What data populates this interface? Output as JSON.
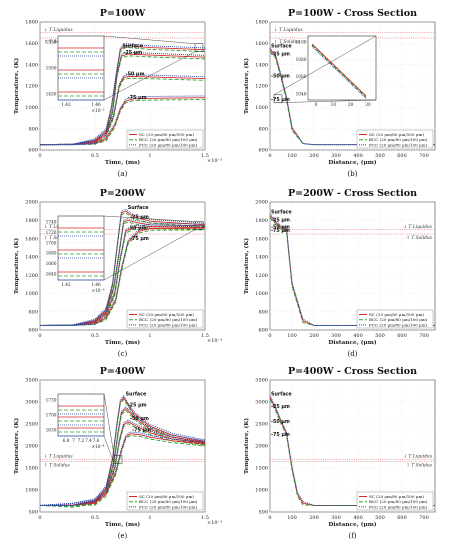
{
  "legend": [
    {
      "name": "SC (20 μm/80 μm/100 μm)",
      "color": "#d62728",
      "dash": "none"
    },
    {
      "name": "BCC (20 μm/80 μm/100 μm)",
      "color": "#2ca02c",
      "dash": "4,2"
    },
    {
      "name": "FCC (20 μm/80 μm/100 μm)",
      "color": "#1f3f9f",
      "dash": "1,1"
    }
  ],
  "ref_labels": {
    "liquidus": "↓ T Liquidus",
    "solidus": "↑ T Solidus"
  },
  "chart_data": [
    {
      "id": "a",
      "type": "line",
      "title": "P=100W",
      "sublabel": "(a)",
      "xlabel": "Time, (ms)",
      "ylabel": "Temperature, (K)",
      "xlim": [
        0,
        1.5
      ],
      "ylim": [
        600,
        1800
      ],
      "xticks": [
        "0",
        "0.5",
        "1",
        "1.5"
      ],
      "yticks": [
        "600",
        "800",
        "1000",
        "1200",
        "1400",
        "1600",
        "1800"
      ],
      "x_multiplier": "×10⁻³",
      "ref_lines": {
        "liquidus": 1700,
        "solidus": 1650
      },
      "annotations": [
        "Surface",
        "-25 μm",
        "-50 μm",
        "-75 μm"
      ],
      "curves": [
        {
          "label": "Surface",
          "x": [
            0,
            0.3,
            0.5,
            0.6,
            0.65,
            0.7,
            0.73,
            0.78,
            1.0,
            1.5
          ],
          "y": [
            650,
            655,
            690,
            780,
            1000,
            1350,
            1540,
            1580,
            1560,
            1540
          ]
        },
        {
          "label": "-25 μm",
          "x": [
            0,
            0.3,
            0.5,
            0.6,
            0.66,
            0.7,
            0.74,
            0.8,
            1.0,
            1.5
          ],
          "y": [
            650,
            652,
            680,
            760,
            960,
            1300,
            1480,
            1500,
            1490,
            1470
          ]
        },
        {
          "label": "-50 μm",
          "x": [
            0,
            0.3,
            0.5,
            0.6,
            0.67,
            0.72,
            0.76,
            0.82,
            1.0,
            1.5
          ],
          "y": [
            650,
            651,
            670,
            740,
            920,
            1200,
            1280,
            1290,
            1285,
            1270
          ]
        },
        {
          "label": "-75 μm",
          "x": [
            0,
            0.3,
            0.5,
            0.6,
            0.68,
            0.73,
            0.78,
            0.85,
            1.0,
            1.5
          ],
          "y": [
            650,
            650,
            660,
            700,
            830,
            980,
            1060,
            1080,
            1085,
            1090
          ]
        }
      ],
      "inset": {
        "yticks": [
          "1550",
          "1500",
          "1450"
        ],
        "xticks": [
          "1.42",
          "1.46"
        ],
        "multiplier": "×10⁻³"
      }
    },
    {
      "id": "b",
      "type": "line",
      "title": "P=100W - Cross Section",
      "sublabel": "(b)",
      "xlabel": "Distance, (μm)",
      "ylabel": "Temperature, (K)",
      "xlim": [
        0,
        750
      ],
      "ylim": [
        600,
        1800
      ],
      "xticks": [
        "0",
        "100",
        "200",
        "300",
        "400",
        "500",
        "600",
        "700"
      ],
      "yticks": [
        "600",
        "800",
        "1000",
        "1200",
        "1400",
        "1600",
        "1800"
      ],
      "ref_lines": {
        "liquidus": 1700,
        "solidus": 1650
      },
      "annotations": [
        "Surface",
        "-25 μm",
        "-50 μm",
        "-75 μm"
      ],
      "curves": [
        {
          "label": "profile",
          "x": [
            0,
            25,
            50,
            75,
            100,
            150,
            200,
            300,
            750
          ],
          "y": [
            1540,
            1480,
            1290,
            1085,
            800,
            660,
            650,
            650,
            650
          ]
        }
      ],
      "inset": {
        "yticks": [
          "1100",
          "1080",
          "1060",
          "1040"
        ],
        "xticks": [
          "0",
          "10",
          "20",
          "30"
        ]
      }
    },
    {
      "id": "c",
      "type": "line",
      "title": "P=200W",
      "sublabel": "(c)",
      "xlabel": "Time, (ms)",
      "ylabel": "Temperature, (K)",
      "xlim": [
        0,
        1.5
      ],
      "ylim": [
        600,
        2000
      ],
      "xticks": [
        "0",
        "0.5",
        "1",
        "1.5"
      ],
      "yticks": [
        "600",
        "800",
        "1000",
        "1200",
        "1400",
        "1600",
        "1800",
        "2000"
      ],
      "x_multiplier": "×10⁻³",
      "ref_lines": {
        "liquidus": 1700,
        "solidus": 1650
      },
      "annotations": [
        "Surface",
        "-25 μm",
        "-50 μm",
        "-75 μm"
      ],
      "curves": [
        {
          "label": "Surface",
          "x": [
            0,
            0.3,
            0.5,
            0.6,
            0.66,
            0.7,
            0.74,
            0.78,
            0.85,
            1.0,
            1.5
          ],
          "y": [
            650,
            655,
            700,
            820,
            1100,
            1500,
            1880,
            1900,
            1840,
            1790,
            1750
          ]
        },
        {
          "label": "-25 μm",
          "x": [
            0,
            0.3,
            0.5,
            0.6,
            0.67,
            0.72,
            0.76,
            0.8,
            0.9,
            1.0,
            1.5
          ],
          "y": [
            650,
            652,
            690,
            800,
            1060,
            1450,
            1780,
            1800,
            1770,
            1750,
            1740
          ]
        },
        {
          "label": "-50 μm",
          "x": [
            0,
            0.3,
            0.5,
            0.6,
            0.68,
            0.73,
            0.78,
            0.85,
            1.0,
            1.5
          ],
          "y": [
            650,
            651,
            680,
            770,
            1000,
            1380,
            1680,
            1720,
            1730,
            1720
          ]
        },
        {
          "label": "-75 μm",
          "x": [
            0,
            0.3,
            0.5,
            0.6,
            0.69,
            0.74,
            0.8,
            0.9,
            1.0,
            1.5
          ],
          "y": [
            650,
            650,
            665,
            730,
            930,
            1260,
            1560,
            1680,
            1710,
            1715
          ]
        }
      ],
      "inset": {
        "yticks": [
          "1740",
          "1720",
          "1700",
          "1680",
          "1660",
          "1640"
        ],
        "xticks": [
          "1.42",
          "1.46"
        ],
        "multiplier": "×10⁻³"
      }
    },
    {
      "id": "d",
      "type": "line",
      "title": "P=200W - Cross Section",
      "sublabel": "(d)",
      "xlabel": "Distance, (μm)",
      "ylabel": "Temperature, (K)",
      "xlim": [
        0,
        750
      ],
      "ylim": [
        600,
        2000
      ],
      "xticks": [
        "0",
        "100",
        "200",
        "300",
        "400",
        "500",
        "600",
        "700"
      ],
      "yticks": [
        "600",
        "800",
        "1000",
        "1200",
        "1400",
        "1600",
        "1800",
        "2000"
      ],
      "ref_lines": {
        "liquidus": 1700,
        "solidus": 1650
      },
      "annotations": [
        "Surface",
        "-25 μm",
        "-50 μm",
        "-75 μm"
      ],
      "curves": [
        {
          "label": "profile",
          "x": [
            0,
            25,
            50,
            75,
            100,
            150,
            200,
            300,
            750
          ],
          "y": [
            1850,
            1780,
            1720,
            1700,
            1100,
            700,
            650,
            650,
            650
          ]
        }
      ]
    },
    {
      "id": "e",
      "type": "line",
      "title": "P=400W",
      "sublabel": "(e)",
      "xlabel": "Time, (ms)",
      "ylabel": "Temperature, (K)",
      "xlim": [
        0,
        1.5
      ],
      "ylim": [
        500,
        3500
      ],
      "xticks": [
        "0",
        "0.5",
        "1",
        "1.5"
      ],
      "yticks": [
        "500",
        "1000",
        "1500",
        "2000",
        "2500",
        "3000",
        "3500"
      ],
      "x_multiplier": "×10⁻³",
      "ref_lines": {
        "liquidus": 1700,
        "solidus": 1650
      },
      "annotations": [
        "Surface",
        "-25 μm",
        "-50 μm",
        "-75 μm"
      ],
      "curves": [
        {
          "label": "Surface",
          "x": [
            0,
            0.3,
            0.5,
            0.6,
            0.66,
            0.7,
            0.73,
            0.76,
            0.85,
            1.0,
            1.2,
            1.5
          ],
          "y": [
            650,
            660,
            760,
            1050,
            1700,
            2500,
            3000,
            3100,
            2750,
            2450,
            2250,
            2100
          ]
        },
        {
          "label": "-25 μm",
          "x": [
            0,
            0.3,
            0.5,
            0.6,
            0.67,
            0.71,
            0.74,
            0.78,
            0.88,
            1.0,
            1.2,
            1.5
          ],
          "y": [
            650,
            655,
            740,
            1000,
            1600,
            2300,
            2750,
            2850,
            2600,
            2380,
            2200,
            2080
          ]
        },
        {
          "label": "-50 μm",
          "x": [
            0,
            0.3,
            0.5,
            0.6,
            0.68,
            0.72,
            0.76,
            0.8,
            0.9,
            1.0,
            1.2,
            1.5
          ],
          "y": [
            650,
            652,
            720,
            950,
            1500,
            2100,
            2480,
            2550,
            2420,
            2300,
            2160,
            2060
          ]
        },
        {
          "label": "-75 μm",
          "x": [
            0,
            0.3,
            0.5,
            0.6,
            0.69,
            0.74,
            0.78,
            0.82,
            0.92,
            1.0,
            1.2,
            1.5
          ],
          "y": [
            650,
            650,
            700,
            900,
            1400,
            1900,
            2200,
            2280,
            2250,
            2200,
            2120,
            2040
          ]
        }
      ],
      "inset": {
        "yticks": [
          "1730",
          "1700",
          "1630"
        ],
        "xticks": [
          "6.8",
          "7",
          "7.2",
          "7.4",
          "7.6"
        ],
        "multiplier": "×10⁻⁴"
      }
    },
    {
      "id": "f",
      "type": "line",
      "title": "P=400W - Cross Section",
      "sublabel": "(f)",
      "xlabel": "Distance, (μm)",
      "ylabel": "Temperature, (K)",
      "xlim": [
        0,
        750
      ],
      "ylim": [
        500,
        3500
      ],
      "xticks": [
        "0",
        "100",
        "200",
        "300",
        "400",
        "500",
        "600",
        "700"
      ],
      "yticks": [
        "500",
        "1000",
        "1500",
        "2000",
        "2500",
        "3000",
        "3500"
      ],
      "ref_lines": {
        "liquidus": 1700,
        "solidus": 1650
      },
      "annotations": [
        "Surface",
        "-25 μm",
        "-50 μm",
        "-75 μm"
      ],
      "curves": [
        {
          "label": "profile",
          "x": [
            0,
            25,
            50,
            75,
            100,
            125,
            150,
            200,
            300,
            750
          ],
          "y": [
            3100,
            2850,
            2550,
            2280,
            1500,
            900,
            700,
            650,
            650,
            650
          ]
        }
      ]
    }
  ]
}
